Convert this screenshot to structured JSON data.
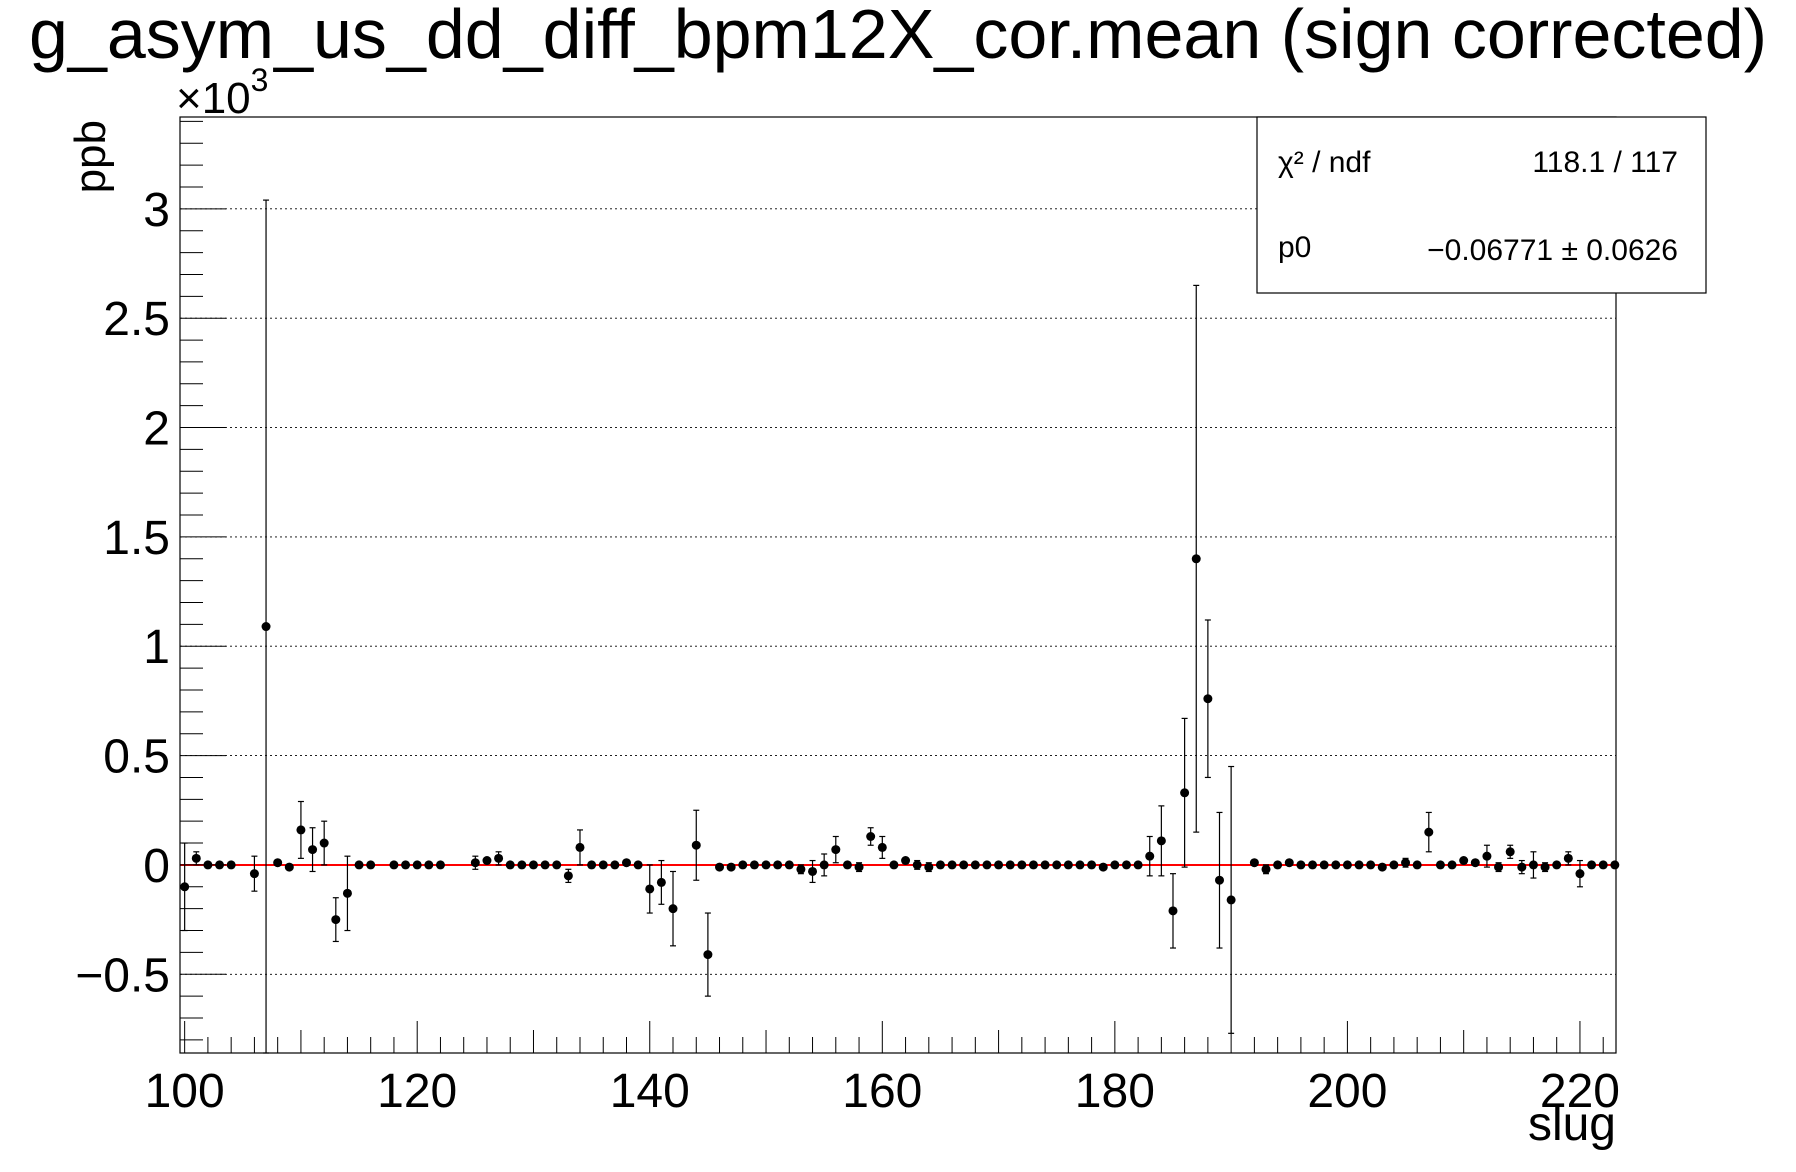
{
  "chart_data": {
    "type": "scatter",
    "title": "g_asym_us_dd_diff_bpm12X_cor.mean (sign corrected)",
    "xlabel": "slug",
    "ylabel": "ppb",
    "y_exponent_label": "×10",
    "y_exponent_power": "3",
    "y_scale": 1000,
    "xlim": [
      99.6,
      223.1
    ],
    "ylim": [
      -0.86,
      3.42
    ],
    "x_ticks": [
      100,
      120,
      140,
      160,
      180,
      200,
      220
    ],
    "x_tick_labels": [
      "100",
      "120",
      "140",
      "160",
      "180",
      "200",
      "220"
    ],
    "y_ticks": [
      -0.5,
      0,
      0.5,
      1,
      1.5,
      2,
      2.5,
      3
    ],
    "y_tick_labels": [
      "−0.5",
      "0",
      "0.5",
      "1",
      "1.5",
      "2",
      "2.5",
      "3"
    ],
    "grid": "horizontal-dotted",
    "fit": {
      "p0": -0.06771
    },
    "stats_box": {
      "position": "top-right",
      "rows": [
        {
          "label": "χ² / ndf",
          "value": "118.1 / 117"
        },
        {
          "label": "p0",
          "value": "−0.06771 ± 0.0626"
        }
      ]
    },
    "points": [
      {
        "x": 100,
        "y": -0.1,
        "e": 0.2
      },
      {
        "x": 101,
        "y": 0.03,
        "e": 0.03
      },
      {
        "x": 102,
        "y": 0.0,
        "e": 0.01
      },
      {
        "x": 103,
        "y": 0.0,
        "e": 0.01
      },
      {
        "x": 104,
        "y": 0.0,
        "e": 0.01
      },
      {
        "x": 106,
        "y": -0.04,
        "e": 0.08
      },
      {
        "x": 107,
        "y": 1.09,
        "e": 1.95
      },
      {
        "x": 108,
        "y": 0.01,
        "e": 0.01
      },
      {
        "x": 109,
        "y": -0.01,
        "e": 0.01
      },
      {
        "x": 110,
        "y": 0.16,
        "e": 0.13
      },
      {
        "x": 111,
        "y": 0.07,
        "e": 0.1
      },
      {
        "x": 112,
        "y": 0.1,
        "e": 0.1
      },
      {
        "x": 113,
        "y": -0.25,
        "e": 0.1
      },
      {
        "x": 114,
        "y": -0.13,
        "e": 0.17
      },
      {
        "x": 115,
        "y": 0.0,
        "e": 0.01
      },
      {
        "x": 116,
        "y": 0.0,
        "e": 0.01
      },
      {
        "x": 118,
        "y": 0.0,
        "e": 0.01
      },
      {
        "x": 119,
        "y": 0.0,
        "e": 0.01
      },
      {
        "x": 120,
        "y": 0.0,
        "e": 0.01
      },
      {
        "x": 121,
        "y": 0.0,
        "e": 0.01
      },
      {
        "x": 122,
        "y": 0.0,
        "e": 0.01
      },
      {
        "x": 125,
        "y": 0.01,
        "e": 0.03
      },
      {
        "x": 126,
        "y": 0.02,
        "e": 0.01
      },
      {
        "x": 127,
        "y": 0.03,
        "e": 0.03
      },
      {
        "x": 128,
        "y": 0.0,
        "e": 0.01
      },
      {
        "x": 129,
        "y": 0.0,
        "e": 0.01
      },
      {
        "x": 130,
        "y": 0.0,
        "e": 0.01
      },
      {
        "x": 131,
        "y": 0.0,
        "e": 0.01
      },
      {
        "x": 132,
        "y": 0.0,
        "e": 0.01
      },
      {
        "x": 133,
        "y": -0.05,
        "e": 0.03
      },
      {
        "x": 134,
        "y": 0.08,
        "e": 0.08
      },
      {
        "x": 135,
        "y": 0.0,
        "e": 0.01
      },
      {
        "x": 136,
        "y": 0.0,
        "e": 0.01
      },
      {
        "x": 137,
        "y": 0.0,
        "e": 0.01
      },
      {
        "x": 138,
        "y": 0.01,
        "e": 0.01
      },
      {
        "x": 139,
        "y": 0.0,
        "e": 0.01
      },
      {
        "x": 140,
        "y": -0.11,
        "e": 0.11
      },
      {
        "x": 141,
        "y": -0.08,
        "e": 0.1
      },
      {
        "x": 142,
        "y": -0.2,
        "e": 0.17
      },
      {
        "x": 144,
        "y": 0.09,
        "e": 0.16
      },
      {
        "x": 145,
        "y": -0.41,
        "e": 0.19
      },
      {
        "x": 146,
        "y": -0.01,
        "e": 0.01
      },
      {
        "x": 147,
        "y": -0.01,
        "e": 0.01
      },
      {
        "x": 148,
        "y": 0.0,
        "e": 0.01
      },
      {
        "x": 149,
        "y": 0.0,
        "e": 0.01
      },
      {
        "x": 150,
        "y": 0.0,
        "e": 0.01
      },
      {
        "x": 151,
        "y": 0.0,
        "e": 0.01
      },
      {
        "x": 152,
        "y": 0.0,
        "e": 0.01
      },
      {
        "x": 153,
        "y": -0.02,
        "e": 0.02
      },
      {
        "x": 154,
        "y": -0.03,
        "e": 0.05
      },
      {
        "x": 155,
        "y": 0.0,
        "e": 0.05
      },
      {
        "x": 156,
        "y": 0.07,
        "e": 0.06
      },
      {
        "x": 157,
        "y": 0.0,
        "e": 0.01
      },
      {
        "x": 158,
        "y": -0.01,
        "e": 0.02
      },
      {
        "x": 159,
        "y": 0.13,
        "e": 0.04
      },
      {
        "x": 160,
        "y": 0.08,
        "e": 0.05
      },
      {
        "x": 161,
        "y": 0.0,
        "e": 0.01
      },
      {
        "x": 162,
        "y": 0.02,
        "e": 0.01
      },
      {
        "x": 163,
        "y": 0.0,
        "e": 0.02
      },
      {
        "x": 164,
        "y": -0.01,
        "e": 0.02
      },
      {
        "x": 165,
        "y": 0.0,
        "e": 0.01
      },
      {
        "x": 166,
        "y": 0.0,
        "e": 0.01
      },
      {
        "x": 167,
        "y": 0.0,
        "e": 0.01
      },
      {
        "x": 168,
        "y": 0.0,
        "e": 0.01
      },
      {
        "x": 169,
        "y": 0.0,
        "e": 0.01
      },
      {
        "x": 170,
        "y": 0.0,
        "e": 0.01
      },
      {
        "x": 171,
        "y": 0.0,
        "e": 0.01
      },
      {
        "x": 172,
        "y": 0.0,
        "e": 0.01
      },
      {
        "x": 173,
        "y": 0.0,
        "e": 0.01
      },
      {
        "x": 174,
        "y": 0.0,
        "e": 0.01
      },
      {
        "x": 175,
        "y": 0.0,
        "e": 0.01
      },
      {
        "x": 176,
        "y": 0.0,
        "e": 0.01
      },
      {
        "x": 177,
        "y": 0.0,
        "e": 0.01
      },
      {
        "x": 178,
        "y": 0.0,
        "e": 0.01
      },
      {
        "x": 179,
        "y": -0.01,
        "e": 0.01
      },
      {
        "x": 180,
        "y": 0.0,
        "e": 0.01
      },
      {
        "x": 181,
        "y": 0.0,
        "e": 0.01
      },
      {
        "x": 182,
        "y": 0.0,
        "e": 0.01
      },
      {
        "x": 183,
        "y": 0.04,
        "e": 0.09
      },
      {
        "x": 184,
        "y": 0.11,
        "e": 0.16
      },
      {
        "x": 185,
        "y": -0.21,
        "e": 0.17
      },
      {
        "x": 186,
        "y": 0.33,
        "e": 0.34
      },
      {
        "x": 187,
        "y": 1.4,
        "e": 1.25
      },
      {
        "x": 188,
        "y": 0.76,
        "e": 0.36
      },
      {
        "x": 189,
        "y": -0.07,
        "e": 0.31
      },
      {
        "x": 190,
        "y": -0.16,
        "e": 0.61
      },
      {
        "x": 192,
        "y": 0.01,
        "e": 0.01
      },
      {
        "x": 193,
        "y": -0.02,
        "e": 0.02
      },
      {
        "x": 194,
        "y": 0.0,
        "e": 0.01
      },
      {
        "x": 195,
        "y": 0.01,
        "e": 0.01
      },
      {
        "x": 196,
        "y": 0.0,
        "e": 0.01
      },
      {
        "x": 197,
        "y": 0.0,
        "e": 0.01
      },
      {
        "x": 198,
        "y": 0.0,
        "e": 0.01
      },
      {
        "x": 199,
        "y": 0.0,
        "e": 0.01
      },
      {
        "x": 200,
        "y": 0.0,
        "e": 0.01
      },
      {
        "x": 201,
        "y": 0.0,
        "e": 0.01
      },
      {
        "x": 202,
        "y": 0.0,
        "e": 0.01
      },
      {
        "x": 203,
        "y": -0.01,
        "e": 0.01
      },
      {
        "x": 204,
        "y": 0.0,
        "e": 0.01
      },
      {
        "x": 205,
        "y": 0.01,
        "e": 0.02
      },
      {
        "x": 206,
        "y": 0.0,
        "e": 0.01
      },
      {
        "x": 207,
        "y": 0.15,
        "e": 0.09
      },
      {
        "x": 208,
        "y": 0.0,
        "e": 0.01
      },
      {
        "x": 209,
        "y": 0.0,
        "e": 0.01
      },
      {
        "x": 210,
        "y": 0.02,
        "e": 0.01
      },
      {
        "x": 211,
        "y": 0.01,
        "e": 0.01
      },
      {
        "x": 212,
        "y": 0.04,
        "e": 0.05
      },
      {
        "x": 213,
        "y": -0.01,
        "e": 0.02
      },
      {
        "x": 214,
        "y": 0.06,
        "e": 0.03
      },
      {
        "x": 215,
        "y": -0.01,
        "e": 0.03
      },
      {
        "x": 216,
        "y": 0.0,
        "e": 0.06
      },
      {
        "x": 217,
        "y": -0.01,
        "e": 0.02
      },
      {
        "x": 218,
        "y": 0.0,
        "e": 0.01
      },
      {
        "x": 219,
        "y": 0.03,
        "e": 0.03
      },
      {
        "x": 220,
        "y": -0.04,
        "e": 0.06
      },
      {
        "x": 221,
        "y": 0.0,
        "e": 0.01
      },
      {
        "x": 222,
        "y": 0.0,
        "e": 0.01
      },
      {
        "x": 223,
        "y": 0.0,
        "e": 0.01
      }
    ]
  },
  "colors": {
    "marker": "#000000",
    "fit_line": "#ff0000",
    "axis": "#000000",
    "grid": "#000000",
    "background": "#ffffff"
  }
}
